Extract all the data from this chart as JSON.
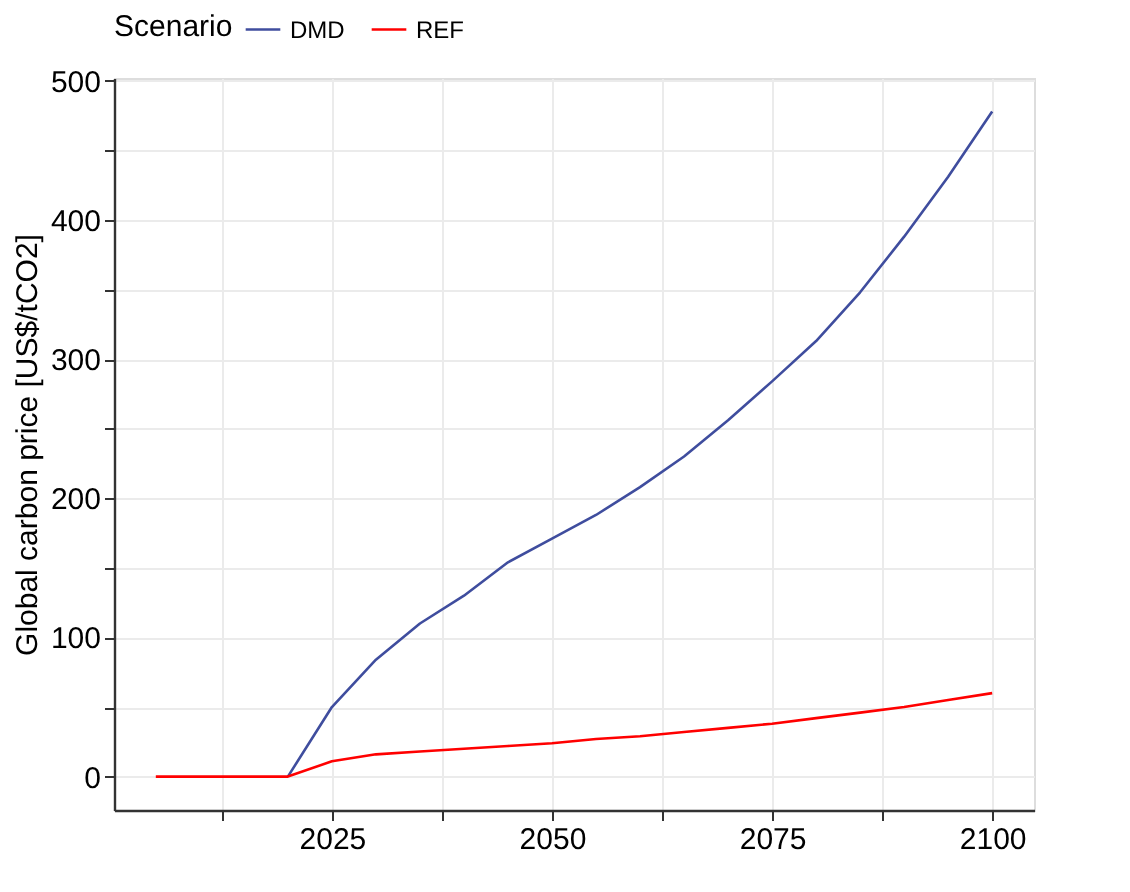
{
  "chart_data": {
    "type": "line",
    "ylabel": "Global carbon price [US$/tCO2]",
    "legend_title": "Scenario",
    "legend": "top",
    "x": [
      2005,
      2010,
      2015,
      2020,
      2025,
      2030,
      2035,
      2040,
      2045,
      2050,
      2055,
      2060,
      2065,
      2070,
      2075,
      2080,
      2085,
      2090,
      2095,
      2100
    ],
    "series": [
      {
        "name": "DMD",
        "color": "#3f4d9e",
        "values": [
          null,
          null,
          null,
          0,
          50,
          84,
          110,
          130,
          154,
          171,
          188,
          208,
          230,
          256,
          284,
          313,
          348,
          388,
          431,
          478
        ]
      },
      {
        "name": "REF",
        "color": "#ff0000",
        "values": [
          0,
          0,
          0,
          0,
          11,
          16,
          18,
          20,
          22,
          24,
          27,
          29,
          32,
          35,
          38,
          42,
          46,
          50,
          55,
          60
        ]
      }
    ],
    "xlim": [
      2000.25,
      2104.75
    ],
    "ylim": [
      -24,
      502
    ],
    "xticks": [
      {
        "value": 2012.5,
        "label": null
      },
      2025,
      {
        "value": 2037.5,
        "label": null
      },
      2050,
      {
        "value": 2062.5,
        "label": null
      },
      2075,
      {
        "value": 2087.5,
        "label": null
      },
      2100
    ],
    "yticks": [
      0,
      {
        "value": 50,
        "label": null
      },
      100,
      {
        "value": 150,
        "label": null
      },
      200,
      {
        "value": 250,
        "label": null
      },
      300,
      {
        "value": 350,
        "label": null
      },
      400,
      {
        "value": 450,
        "label": null
      },
      500
    ],
    "grid": true,
    "line_style": "solid"
  }
}
